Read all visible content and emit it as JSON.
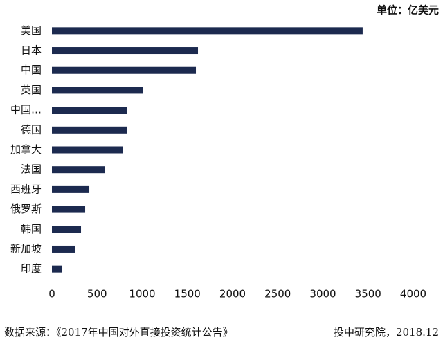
{
  "chart_data": {
    "type": "bar",
    "orientation": "horizontal",
    "unit_label": "单位：亿美元",
    "categories": [
      "美国",
      "日本",
      "中国",
      "英国",
      "中国…",
      "德国",
      "加拿大",
      "法国",
      "西班牙",
      "俄罗斯",
      "韩国",
      "新加坡",
      "印度"
    ],
    "values": [
      3440,
      1617,
      1594,
      1004,
      828,
      828,
      782,
      590,
      414,
      368,
      322,
      253,
      115
    ],
    "color": "#1c2a4f",
    "xlim": [
      0,
      4000
    ],
    "xticks": [
      0,
      500,
      1000,
      1500,
      2000,
      2500,
      3000,
      3500,
      4000
    ],
    "grid": false,
    "source": "数据来源：《2017年中国对外直接投资统计公告》",
    "credit": "投中研究院，2018.12"
  }
}
